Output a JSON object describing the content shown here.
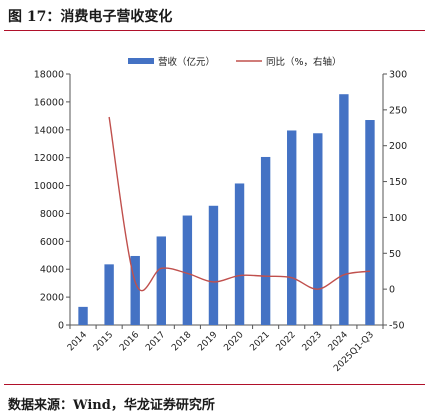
{
  "figure": {
    "title": "图 17：消费电子营收变化",
    "source": "数据来源：Wind，华龙证券研究所"
  },
  "chart_data": {
    "type": "bar",
    "categories": [
      "2014",
      "2015",
      "2016",
      "2017",
      "2018",
      "2019",
      "2020",
      "2021",
      "2022",
      "2023",
      "2024",
      "2025Q1-Q3"
    ],
    "series": [
      {
        "name": "营收（亿元）",
        "type": "bar",
        "axis": "left",
        "color": "#4472c4",
        "values": [
          1300,
          4350,
          4950,
          6350,
          7850,
          8550,
          10150,
          12050,
          13950,
          13750,
          16550,
          14700
        ]
      },
      {
        "name": "同比（%，右轴）",
        "type": "line",
        "axis": "right",
        "color": "#c0504d",
        "values": [
          null,
          240,
          10,
          29,
          22,
          10,
          19,
          18,
          16,
          0,
          20,
          25
        ]
      }
    ],
    "y_left": {
      "min": 0,
      "max": 18000,
      "ticks": [
        0,
        2000,
        4000,
        6000,
        8000,
        10000,
        12000,
        14000,
        16000,
        18000
      ]
    },
    "y_right": {
      "min": -50,
      "max": 300,
      "ticks": [
        -50,
        0,
        50,
        100,
        150,
        200,
        250,
        300
      ]
    },
    "grid": false,
    "legend": "top-center"
  }
}
